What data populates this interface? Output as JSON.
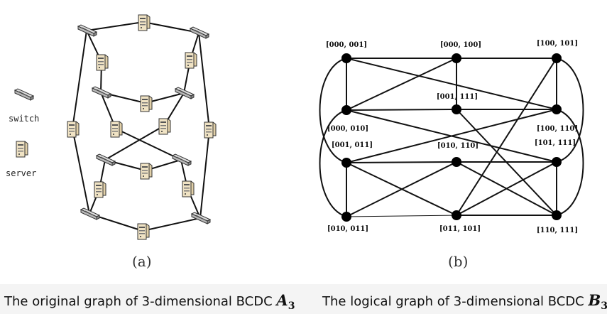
{
  "legend": {
    "switch_label": "switch",
    "server_label": "server"
  },
  "panels": {
    "a_label": "(a)",
    "b_label": "(b)"
  },
  "captions": {
    "left_text": "The original graph of 3-dimensional BCDC ",
    "left_symbol": "A",
    "left_sub": "3",
    "right_text": "The logical graph of 3-dimensional BCDC ",
    "right_symbol": "B",
    "right_sub": "3"
  },
  "logical_graph": {
    "nodes": [
      {
        "id": "n000_001",
        "label": "[000, 001]"
      },
      {
        "id": "n000_100",
        "label": "[000, 100]"
      },
      {
        "id": "n100_101",
        "label": "[100, 101]"
      },
      {
        "id": "n001_111",
        "label": "[001, 111]"
      },
      {
        "id": "n000_010",
        "label": "[000, 010]"
      },
      {
        "id": "n100_110",
        "label": "[100, 110]"
      },
      {
        "id": "n001_011",
        "label": "[001, 011]"
      },
      {
        "id": "n010_110",
        "label": "[010, 110]"
      },
      {
        "id": "n101_111",
        "label": "[101, 111]"
      },
      {
        "id": "n010_011",
        "label": "[010, 011]"
      },
      {
        "id": "n011_101",
        "label": "[011, 101]"
      },
      {
        "id": "n110_111",
        "label": "[110, 111]"
      }
    ]
  }
}
